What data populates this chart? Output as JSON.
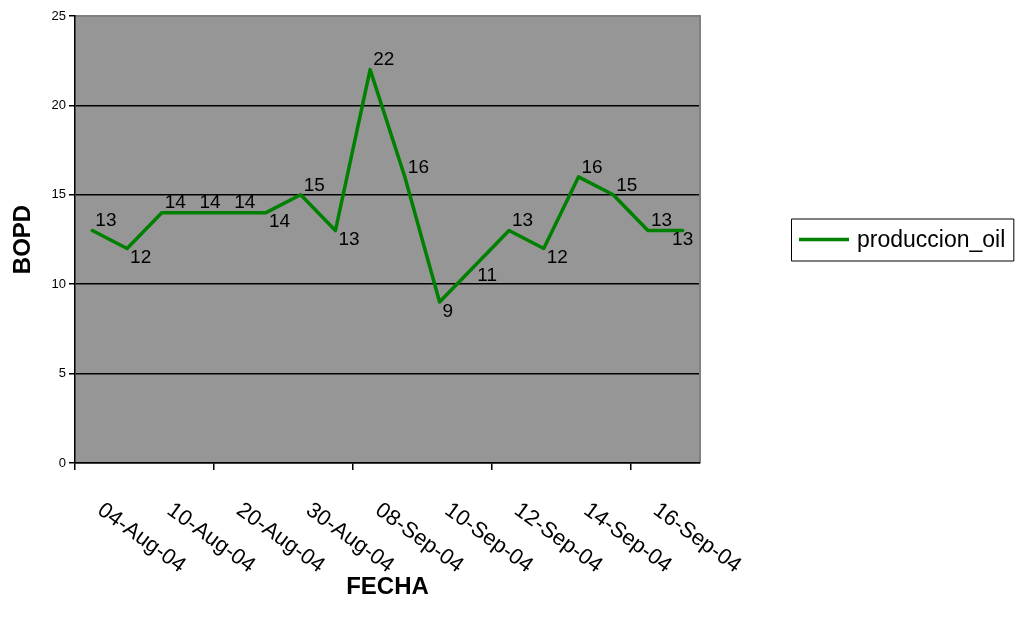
{
  "chart_data": {
    "type": "line",
    "xlabel": "FECHA",
    "ylabel": "BOPD",
    "categories": [
      "04-Aug-04",
      null,
      "10-Aug-04",
      null,
      "20-Aug-04",
      null,
      "30-Aug-04",
      null,
      "08-Sep-04",
      null,
      "10-Sep-04",
      null,
      "12-Sep-04",
      null,
      "14-Sep-04",
      null,
      "16-Sep-04",
      null
    ],
    "series": [
      {
        "name": "produccion_oil",
        "color": "#008000",
        "values": [
          13,
          12,
          14,
          14,
          14,
          14,
          15,
          13,
          22,
          16,
          9,
          11,
          13,
          12,
          16,
          15,
          13,
          13
        ]
      }
    ],
    "ylim": [
      0,
      25
    ],
    "yticks": [
      0,
      5,
      10,
      15,
      20,
      25
    ],
    "grid": "y",
    "legend": "right",
    "marker": "none",
    "data_labels": true
  }
}
